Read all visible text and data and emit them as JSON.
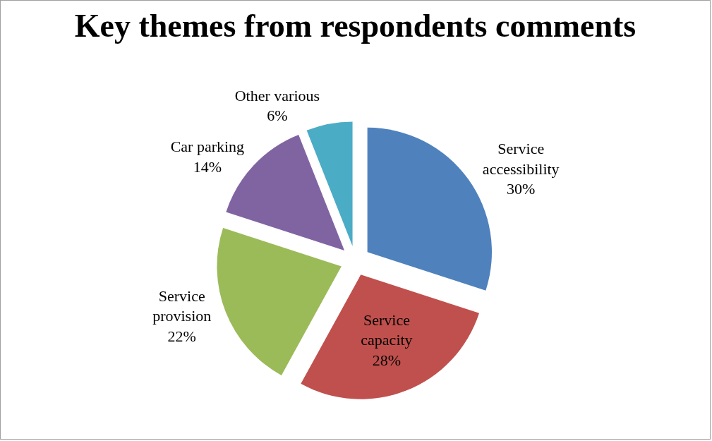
{
  "chart_data": {
    "type": "pie",
    "title": "Key themes from respondents comments",
    "categories": [
      "Service accessibility",
      "Service capacity",
      "Service provision",
      "Car parking",
      "Other various"
    ],
    "values": [
      30,
      28,
      22,
      14,
      6
    ],
    "value_labels": [
      "30%",
      "28%",
      "22%",
      "14%",
      "6%"
    ],
    "colors": [
      "#4f81bd",
      "#c0504d",
      "#9bbb59",
      "#8064a2",
      "#4bacc6"
    ],
    "legend": false
  }
}
